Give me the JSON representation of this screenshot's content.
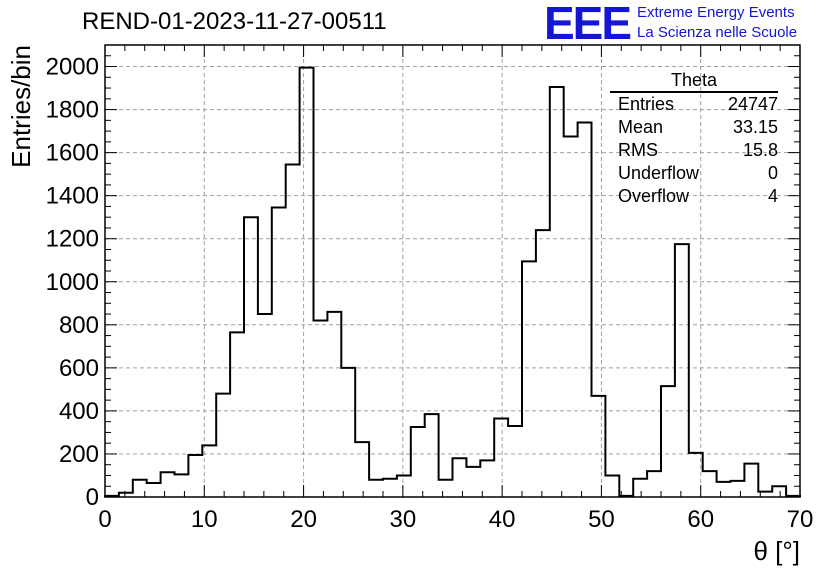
{
  "header": {
    "title": "REND-01-2023-11-27-00511",
    "logo": "EEE",
    "logo_line1": "Extreme Energy Events",
    "logo_line2": "La Scienza nelle Scuole"
  },
  "stats": {
    "title": "Theta",
    "rows": [
      {
        "label": "Entries",
        "value": "24747"
      },
      {
        "label": "Mean",
        "value": "33.15"
      },
      {
        "label": "RMS",
        "value": "15.8"
      },
      {
        "label": "Underflow",
        "value": "0"
      },
      {
        "label": "Overflow",
        "value": "4"
      }
    ]
  },
  "colors": {
    "logo": "#1515d6",
    "line": "#000000",
    "grid": "#a0a0a0"
  },
  "chart_data": {
    "type": "histogram",
    "xlabel": "θ [°]",
    "ylabel": "Entries/bin",
    "xlim": [
      0,
      70
    ],
    "ylim": [
      0,
      2100
    ],
    "grid": true,
    "bin_width": 1.4,
    "x_ticks": [
      0,
      10,
      20,
      30,
      40,
      50,
      60,
      70
    ],
    "y_ticks": [
      0,
      200,
      400,
      600,
      800,
      1000,
      1200,
      1400,
      1600,
      1800,
      2000
    ],
    "values": [
      5,
      20,
      80,
      65,
      115,
      105,
      195,
      240,
      480,
      765,
      1300,
      850,
      1345,
      1545,
      1995,
      820,
      860,
      600,
      255,
      80,
      85,
      100,
      325,
      385,
      80,
      180,
      140,
      170,
      365,
      330,
      1095,
      1240,
      1905,
      1675,
      1740,
      470,
      100,
      5,
      85,
      120,
      515,
      1175,
      205,
      120,
      70,
      75,
      155,
      25,
      50,
      5
    ]
  }
}
